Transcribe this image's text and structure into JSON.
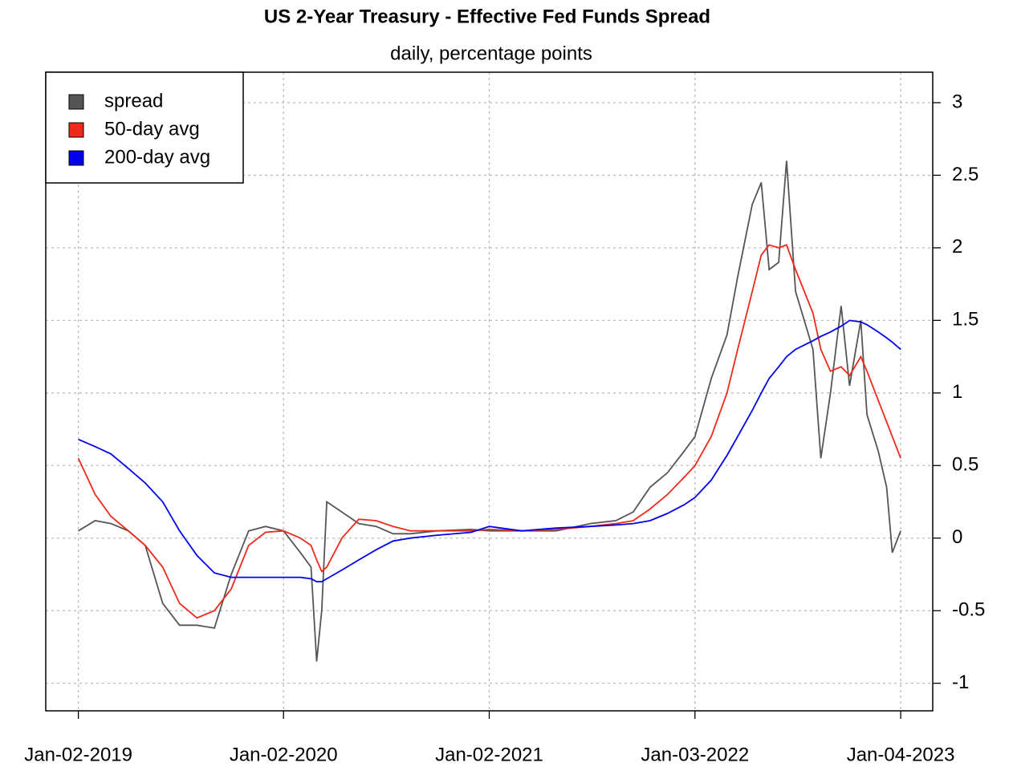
{
  "chart_data": {
    "type": "line",
    "title": "US 2-Year Treasury - Effective Fed Funds Spread",
    "subtitle": "daily, percentage points",
    "x": [
      "2019-01-02",
      "2019-02-01",
      "2019-03-01",
      "2019-04-01",
      "2019-05-01",
      "2019-06-01",
      "2019-07-01",
      "2019-08-01",
      "2019-09-01",
      "2019-10-01",
      "2019-11-01",
      "2019-12-01",
      "2020-01-02",
      "2020-02-01",
      "2020-02-20",
      "2020-03-01",
      "2020-03-10",
      "2020-03-19",
      "2020-04-15",
      "2020-05-15",
      "2020-06-15",
      "2020-07-15",
      "2020-08-15",
      "2020-10-01",
      "2020-12-01",
      "2021-01-02",
      "2021-03-01",
      "2021-05-01",
      "2021-07-01",
      "2021-08-15",
      "2021-09-15",
      "2021-10-15",
      "2021-11-15",
      "2021-12-15",
      "2022-01-03",
      "2022-02-01",
      "2022-03-01",
      "2022-03-20",
      "2022-04-15",
      "2022-05-01",
      "2022-05-15",
      "2022-06-01",
      "2022-06-15",
      "2022-07-01",
      "2022-08-01",
      "2022-08-15",
      "2022-09-01",
      "2022-09-20",
      "2022-10-05",
      "2022-10-25",
      "2022-11-05",
      "2022-11-25",
      "2022-12-10",
      "2022-12-20",
      "2023-01-04"
    ],
    "series": [
      {
        "name": "spread",
        "color": "#555555",
        "values": [
          0.05,
          0.12,
          0.1,
          0.05,
          -0.05,
          -0.45,
          -0.6,
          -0.6,
          -0.62,
          -0.25,
          0.05,
          0.08,
          0.05,
          -0.1,
          -0.2,
          -0.85,
          -0.5,
          0.25,
          0.18,
          0.1,
          0.08,
          0.03,
          0.03,
          0.05,
          0.06,
          0.05,
          0.05,
          0.05,
          0.1,
          0.12,
          0.18,
          0.35,
          0.45,
          0.6,
          0.7,
          1.1,
          1.4,
          1.8,
          2.3,
          2.45,
          1.85,
          1.9,
          2.6,
          1.7,
          1.3,
          0.55,
          1.0,
          1.6,
          1.05,
          1.5,
          0.85,
          0.6,
          0.35,
          -0.1,
          0.05
        ]
      },
      {
        "name": "50-day avg",
        "color": "#ee2a1b",
        "values": [
          0.55,
          0.3,
          0.15,
          0.05,
          -0.05,
          -0.2,
          -0.45,
          -0.55,
          -0.5,
          -0.35,
          -0.05,
          0.04,
          0.05,
          0.0,
          -0.05,
          -0.15,
          -0.23,
          -0.2,
          0.0,
          0.13,
          0.12,
          0.08,
          0.05,
          0.05,
          0.05,
          0.06,
          0.05,
          0.06,
          0.08,
          0.1,
          0.12,
          0.2,
          0.3,
          0.42,
          0.5,
          0.7,
          1.0,
          1.3,
          1.7,
          1.95,
          2.02,
          2.0,
          2.02,
          1.85,
          1.55,
          1.3,
          1.15,
          1.18,
          1.12,
          1.25,
          1.15,
          0.95,
          0.8,
          0.7,
          0.55
        ]
      },
      {
        "name": "200-day avg",
        "color": "#0000ee",
        "values": [
          0.68,
          0.63,
          0.58,
          0.48,
          0.38,
          0.25,
          0.05,
          -0.12,
          -0.24,
          -0.27,
          -0.27,
          -0.27,
          -0.27,
          -0.27,
          -0.28,
          -0.3,
          -0.3,
          -0.28,
          -0.22,
          -0.15,
          -0.08,
          -0.02,
          0.0,
          0.02,
          0.04,
          0.08,
          0.05,
          0.07,
          0.08,
          0.09,
          0.1,
          0.12,
          0.17,
          0.23,
          0.28,
          0.4,
          0.57,
          0.7,
          0.88,
          1.0,
          1.1,
          1.18,
          1.25,
          1.3,
          1.36,
          1.39,
          1.42,
          1.46,
          1.5,
          1.49,
          1.47,
          1.42,
          1.38,
          1.35,
          1.3
        ]
      }
    ],
    "xlim": [
      "2018-11-05",
      "2023-03-02"
    ],
    "xticks": [
      {
        "value": "2019-01-02",
        "label": "Jan-02-2019"
      },
      {
        "value": "2020-01-02",
        "label": "Jan-02-2020"
      },
      {
        "value": "2021-01-02",
        "label": "Jan-02-2021"
      },
      {
        "value": "2022-01-03",
        "label": "Jan-03-2022"
      },
      {
        "value": "2023-01-04",
        "label": "Jan-04-2023"
      }
    ],
    "ylim": [
      -1.19,
      3.21
    ],
    "yticks": [
      -1,
      -0.5,
      0,
      0.5,
      1,
      1.5,
      2,
      2.5,
      3
    ],
    "y_axis_side": "right",
    "grid": true,
    "legend": "topleft"
  }
}
